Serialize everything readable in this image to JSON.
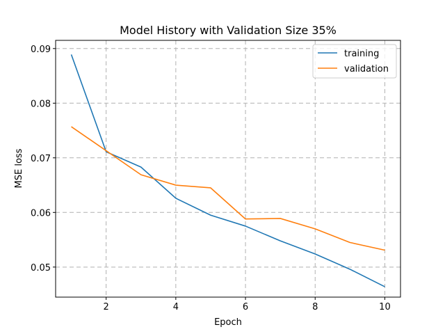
{
  "chart_data": {
    "type": "line",
    "title": "Model History with Validation Size 35%",
    "xlabel": "Epoch",
    "ylabel": "MSE loss",
    "xlim": [
      0.55,
      10.45
    ],
    "ylim": [
      0.0445,
      0.0915
    ],
    "x_ticks": [
      2,
      4,
      6,
      8,
      10
    ],
    "y_ticks": [
      0.05,
      0.06,
      0.07,
      0.08,
      0.09
    ],
    "y_tick_labels": [
      "0.05",
      "0.06",
      "0.07",
      "0.08",
      "0.09"
    ],
    "grid": true,
    "legend_position": "top-right",
    "x": [
      1,
      2,
      3,
      4,
      5,
      6,
      7,
      8,
      9,
      10
    ],
    "series": [
      {
        "name": "training",
        "color": "#1f77b4",
        "values": [
          0.0889,
          0.0711,
          0.0683,
          0.0626,
          0.0595,
          0.0575,
          0.0548,
          0.0524,
          0.0496,
          0.0464
        ]
      },
      {
        "name": "validation",
        "color": "#ff7f0e",
        "values": [
          0.0757,
          0.0713,
          0.0669,
          0.065,
          0.0645,
          0.0588,
          0.0589,
          0.057,
          0.0545,
          0.0531
        ]
      }
    ]
  }
}
